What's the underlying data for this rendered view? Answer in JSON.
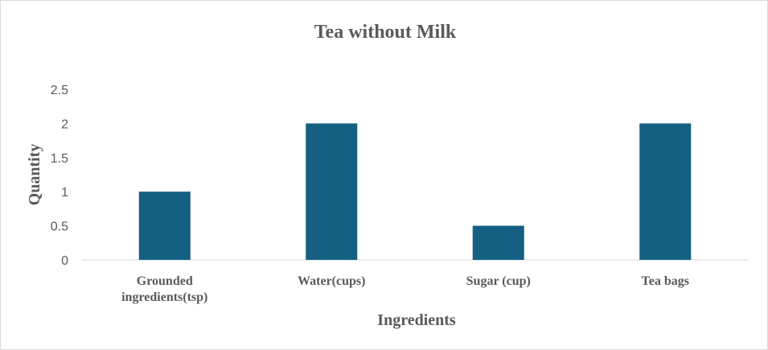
{
  "chart_data": {
    "type": "bar",
    "title": "Tea without Milk",
    "xlabel": "Ingredients",
    "ylabel": "Quantity",
    "categories": [
      [
        "Grounded",
        "ingredients(tsp)"
      ],
      [
        "Water(cups)"
      ],
      [
        "Sugar (cup)"
      ],
      [
        "Tea bags"
      ]
    ],
    "values": [
      1,
      2,
      0.5,
      2
    ],
    "ylim": [
      0,
      2.5
    ],
    "yticks": [
      "0",
      "0.5",
      "1",
      "1.5",
      "2",
      "2.5"
    ],
    "grid": false,
    "legend": "none",
    "bar_color": "#156082"
  }
}
